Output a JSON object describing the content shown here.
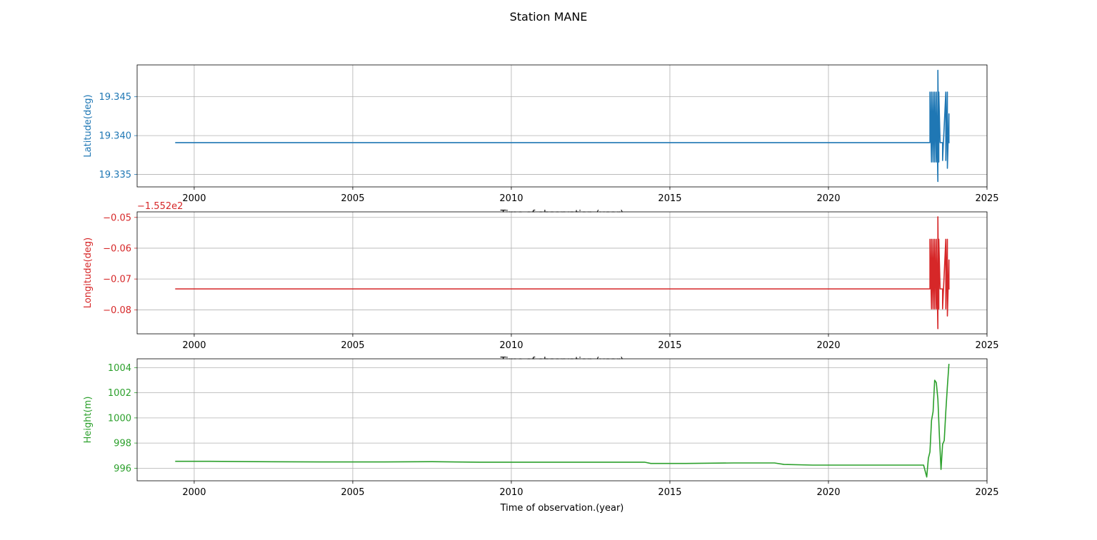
{
  "title": "Station MANE",
  "chart_data": [
    {
      "type": "line",
      "ylabel": "Latitude(deg)",
      "xlabel": "Time of observation.(year)",
      "color": "#1f77b4",
      "xlim": [
        1998.2,
        2025.0
      ],
      "ylim": [
        19.3334,
        19.3491
      ],
      "xticks": [
        "2000",
        "2005",
        "2010",
        "2015",
        "2020",
        "2025"
      ],
      "yticks": [
        19.335,
        19.34,
        19.345
      ],
      "ytick_labels": [
        "19.335",
        "19.340",
        "19.345"
      ],
      "grid": true,
      "x": [
        1999.4,
        2023.2,
        2023.2,
        2023.25,
        2023.25,
        2023.3,
        2023.3,
        2023.35,
        2023.35,
        2023.4,
        2023.4,
        2023.45,
        2023.45,
        2023.48,
        2023.48,
        2023.52,
        2023.52,
        2023.55,
        2023.55,
        2023.6,
        2023.6,
        2023.7,
        2023.7,
        2023.75,
        2023.75,
        2023.8,
        2023.8,
        2023.82
      ],
      "y": [
        19.3391,
        19.3391,
        19.3456,
        19.3366,
        19.3456,
        19.3366,
        19.3456,
        19.3366,
        19.3456,
        19.3366,
        19.3456,
        19.3341,
        19.3484,
        19.3366,
        19.3456,
        19.3391,
        19.3391,
        19.3391,
        19.3391,
        19.3391,
        19.3368,
        19.3456,
        19.3368,
        19.3456,
        19.3358,
        19.3428,
        19.3391,
        19.3391
      ]
    },
    {
      "type": "line",
      "ylabel": "Longitude(deg)",
      "xlabel": "Time of observation.(year)",
      "offset_text": "−1.552e2",
      "color": "#d62728",
      "xlim": [
        1998.2,
        2025.0
      ],
      "ylim": [
        -0.0878,
        -0.0482
      ],
      "xticks": [
        "2000",
        "2005",
        "2010",
        "2015",
        "2020",
        "2025"
      ],
      "yticks": [
        -0.08,
        -0.07,
        -0.06,
        -0.05
      ],
      "ytick_labels": [
        "−0.08",
        "−0.07",
        "−0.06",
        "−0.05"
      ],
      "grid": true,
      "x": [
        1999.4,
        2023.2,
        2023.2,
        2023.25,
        2023.25,
        2023.3,
        2023.3,
        2023.35,
        2023.35,
        2023.4,
        2023.4,
        2023.45,
        2023.45,
        2023.48,
        2023.48,
        2023.52,
        2023.52,
        2023.55,
        2023.55,
        2023.6,
        2023.6,
        2023.7,
        2023.7,
        2023.75,
        2023.75,
        2023.8,
        2023.8,
        2023.82
      ],
      "y": [
        -0.0732,
        -0.0732,
        -0.0571,
        -0.0797,
        -0.0571,
        -0.0797,
        -0.0571,
        -0.0797,
        -0.0571,
        -0.0797,
        -0.0571,
        -0.0861,
        -0.0498,
        -0.0797,
        -0.0571,
        -0.0732,
        -0.0732,
        -0.0732,
        -0.0732,
        -0.0732,
        -0.0797,
        -0.0571,
        -0.0797,
        -0.0571,
        -0.082,
        -0.0638,
        -0.0732,
        -0.0732
      ]
    },
    {
      "type": "line",
      "ylabel": "Height(m)",
      "xlabel": "Time of observation.(year)",
      "color": "#2ca02c",
      "xlim": [
        1998.2,
        2025.0
      ],
      "ylim": [
        995.0,
        1004.7
      ],
      "xticks": [
        "2000",
        "2005",
        "2010",
        "2015",
        "2020",
        "2025"
      ],
      "yticks": [
        996,
        998,
        1000,
        1002,
        1004
      ],
      "ytick_labels": [
        "996",
        "998",
        "1000",
        "1002",
        "1004"
      ],
      "grid": true,
      "x": [
        1999.4,
        2000.5,
        2002.0,
        2004.0,
        2006.0,
        2007.5,
        2009.0,
        2010.5,
        2012.0,
        2013.5,
        2014.2,
        2014.4,
        2015.5,
        2017.0,
        2018.3,
        2018.6,
        2019.5,
        2021.0,
        2022.0,
        2023.0,
        2023.1,
        2023.15,
        2023.2,
        2023.25,
        2023.3,
        2023.35,
        2023.4,
        2023.45,
        2023.5,
        2023.55,
        2023.6,
        2023.65,
        2023.7,
        2023.75,
        2023.8
      ],
      "y": [
        996.55,
        996.55,
        996.52,
        996.5,
        996.5,
        996.52,
        996.48,
        996.48,
        996.48,
        996.48,
        996.48,
        996.38,
        996.38,
        996.42,
        996.42,
        996.3,
        996.25,
        996.25,
        996.25,
        996.25,
        995.3,
        996.8,
        997.3,
        999.8,
        1000.5,
        1003.0,
        1002.8,
        1001.5,
        998.5,
        995.9,
        997.9,
        998.2,
        1000.5,
        1002.5,
        1004.3
      ]
    }
  ]
}
